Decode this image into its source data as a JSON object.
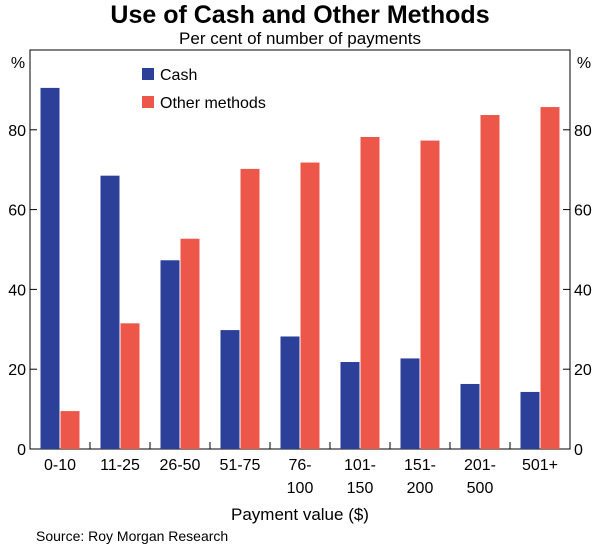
{
  "chart_data": {
    "type": "bar",
    "title": "Use of Cash and Other Methods",
    "subtitle": "Per cent of number of payments",
    "xlabel": "Payment value ($)",
    "ylabel_left": "%",
    "ylabel_right": "%",
    "ylim": [
      0,
      100
    ],
    "yticks": [
      0,
      20,
      40,
      60,
      80
    ],
    "categories": [
      "0-10",
      "11-25",
      "26-50",
      "51-75",
      "76-\n100",
      "101-\n150",
      "151-\n200",
      "201-\n500",
      "501+"
    ],
    "series": [
      {
        "name": "Cash",
        "color": "#2c3f99",
        "values": [
          90.5,
          68.5,
          47.3,
          29.8,
          28.2,
          21.8,
          22.7,
          16.3,
          14.3
        ]
      },
      {
        "name": "Other methods",
        "color": "#ec574a",
        "values": [
          9.5,
          31.5,
          52.7,
          70.2,
          71.8,
          78.2,
          77.3,
          83.7,
          85.7
        ]
      }
    ],
    "legend_position": "top-left",
    "grid": false
  },
  "source": "Source: Roy Morgan Research"
}
